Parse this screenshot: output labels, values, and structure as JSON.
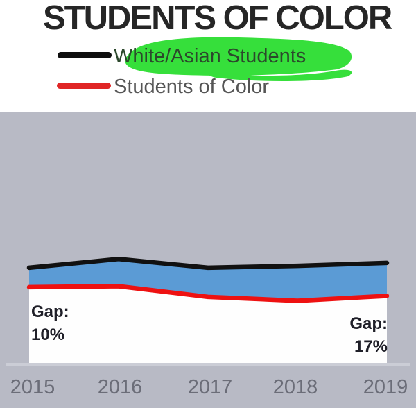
{
  "title": "STUDENTS OF COLOR",
  "legend": {
    "highlight_color": "#36df3b",
    "items": [
      {
        "label": "White/Asian Students",
        "swatch_color": "#0e0e0e",
        "highlighted": true
      },
      {
        "label": "Students of Color",
        "swatch_color": "#e02626",
        "highlighted": false
      }
    ]
  },
  "chart_data": {
    "type": "area",
    "title": "STUDENTS OF COLOR",
    "categories": [
      "2015",
      "2016",
      "2017",
      "2018",
      "2019"
    ],
    "xlabel": "",
    "ylabel": "",
    "ylim": [
      0,
      129
    ],
    "grid": false,
    "legend_position": "top-left-above-chart",
    "series": [
      {
        "name": "White/Asian Students",
        "color": "#111111",
        "fill_below": "#5b9bd5",
        "values": [
          49,
          53.5,
          49,
          50,
          51.5
        ]
      },
      {
        "name": "Students of Color",
        "color": "#ee1111",
        "fill_below": "#fefefe",
        "values": [
          39,
          39.5,
          34,
          32,
          34.5
        ]
      }
    ],
    "annotations": [
      {
        "lines": [
          "Gap:",
          "10%"
        ],
        "anchor_category": "2015",
        "position": "left"
      },
      {
        "lines": [
          "Gap:",
          "17%"
        ],
        "anchor_category": "2019",
        "position": "right"
      }
    ]
  },
  "colors": {
    "page_background": "#ffffff",
    "chart_background": "#b8bac5",
    "axis_line": "#cbcdd6",
    "tick_label_text": "#6b6d78",
    "annotation_text": "#1f1f28",
    "title_text": "#262626",
    "legend_text": "#555555",
    "legend_text_highlighted": "#2c482c"
  }
}
